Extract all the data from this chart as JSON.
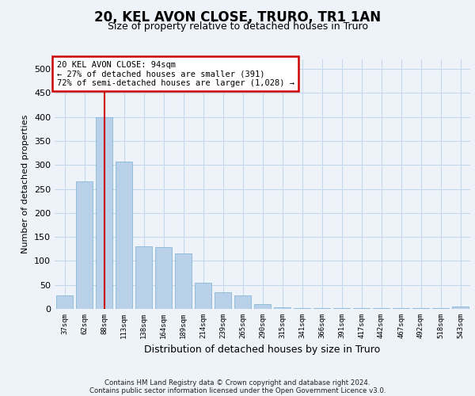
{
  "title": "20, KEL AVON CLOSE, TRURO, TR1 1AN",
  "subtitle": "Size of property relative to detached houses in Truro",
  "xlabel": "Distribution of detached houses by size in Truro",
  "ylabel": "Number of detached properties",
  "footer_line1": "Contains HM Land Registry data © Crown copyright and database right 2024.",
  "footer_line2": "Contains public sector information licensed under the Open Government Licence v3.0.",
  "annotation_line1": "20 KEL AVON CLOSE: 94sqm",
  "annotation_line2": "← 27% of detached houses are smaller (391)",
  "annotation_line3": "72% of semi-detached houses are larger (1,028) →",
  "bar_color": "#b8d0e8",
  "bar_edge_color": "#7aafd4",
  "grid_color": "#c8d8ec",
  "vline_color": "#cc0000",
  "vline_x": 2,
  "categories": [
    "37sqm",
    "62sqm",
    "88sqm",
    "113sqm",
    "138sqm",
    "164sqm",
    "189sqm",
    "214sqm",
    "239sqm",
    "265sqm",
    "290sqm",
    "315sqm",
    "341sqm",
    "366sqm",
    "391sqm",
    "417sqm",
    "442sqm",
    "467sqm",
    "492sqm",
    "518sqm",
    "543sqm"
  ],
  "values": [
    28,
    265,
    400,
    307,
    130,
    128,
    115,
    55,
    35,
    28,
    10,
    3,
    2,
    1,
    1,
    1,
    1,
    1,
    1,
    1,
    5
  ],
  "ylim": [
    0,
    520
  ],
  "yticks": [
    0,
    50,
    100,
    150,
    200,
    250,
    300,
    350,
    400,
    450,
    500
  ],
  "background_color": "#eef3fa",
  "plot_background": "#eef3fa",
  "title_fontsize": 12,
  "subtitle_fontsize": 9
}
